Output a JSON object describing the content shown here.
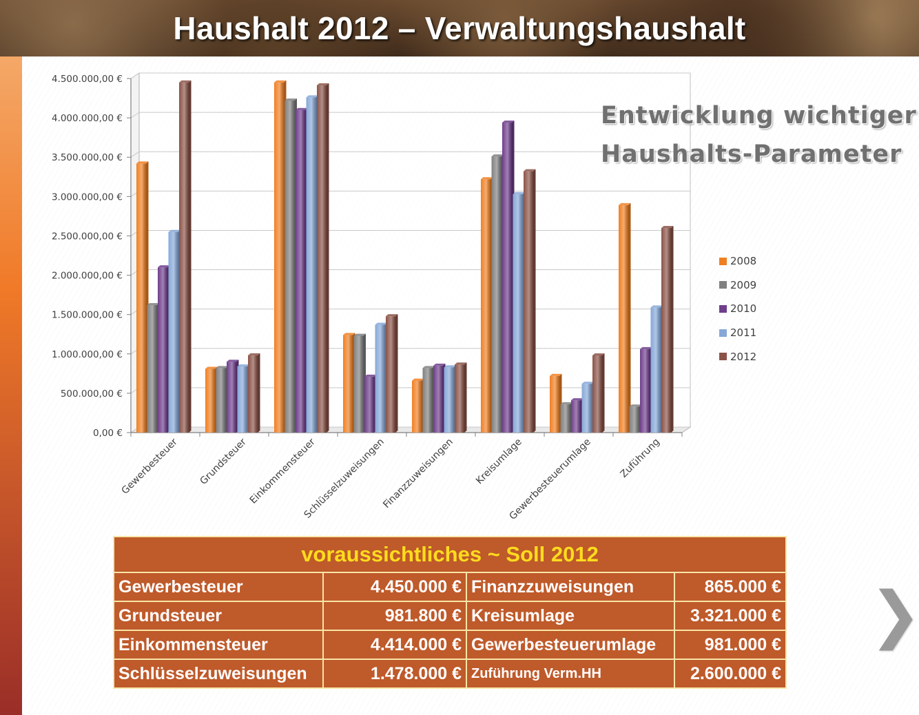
{
  "page_title": "Haushalt 2012 – Verwaltungshaushalt",
  "subtitle_line1": "Entwicklung wichtiger",
  "subtitle_line2": "Haushalts-Parameter",
  "chart_data": {
    "type": "bar",
    "title": "",
    "xlabel": "",
    "ylabel": "",
    "ylim": [
      0,
      4500000
    ],
    "y_ticks": [
      0,
      500000,
      1000000,
      1500000,
      2000000,
      2500000,
      3000000,
      3500000,
      4000000,
      4500000
    ],
    "y_tick_labels": [
      "0,00 €",
      "500.000,00 €",
      "1.000.000,00 €",
      "1.500.000,00 €",
      "2.000.000,00 €",
      "2.500.000,00 €",
      "3.000.000,00 €",
      "3.500.000,00 €",
      "4.000.000,00 €",
      "4.500.000,00 €"
    ],
    "grid": true,
    "legend_position": "right",
    "categories": [
      "Gewerbesteuer",
      "Grundsteuer",
      "Einkommensteuer",
      "Schlüsselzuweisungen",
      "Finanzzuweisungen",
      "Kreisumlage",
      "Gewerbesteuerumlage",
      "Zuführung"
    ],
    "series": [
      {
        "name": "2008",
        "color": "#f07f22",
        "values": [
          3420000,
          810000,
          4450000,
          1240000,
          660000,
          3220000,
          720000,
          2890000
        ]
      },
      {
        "name": "2009",
        "color": "#808080",
        "values": [
          1620000,
          820000,
          4220000,
          1230000,
          820000,
          3510000,
          360000,
          330000
        ]
      },
      {
        "name": "2010",
        "color": "#6f3e8c",
        "values": [
          2100000,
          900000,
          4100000,
          710000,
          850000,
          3940000,
          410000,
          1060000
        ]
      },
      {
        "name": "2011",
        "color": "#86a8d8",
        "values": [
          2550000,
          840000,
          4260000,
          1370000,
          830000,
          3030000,
          620000,
          1590000
        ]
      },
      {
        "name": "2012",
        "color": "#8b5347",
        "values": [
          4450000,
          981800,
          4414000,
          1478000,
          865000,
          3321000,
          981000,
          2600000
        ]
      }
    ]
  },
  "table": {
    "caption": "voraussichtliches   ~  Soll 2012",
    "rows": [
      {
        "l_label": "Gewerbesteuer",
        "l_value": "4.450.000 €",
        "r_label": "Finanzzuweisungen",
        "r_value": "865.000 €"
      },
      {
        "l_label": "Grundsteuer",
        "l_value": "981.800 €",
        "r_label": "Kreisumlage",
        "r_value": "3.321.000 €"
      },
      {
        "l_label": "Einkommensteuer",
        "l_value": "4.414.000 €",
        "r_label": "Gewerbesteuerumlage",
        "r_value": "981.000 €"
      },
      {
        "l_label": "Schlüsselzuweisungen",
        "l_value": "1.478.000 €",
        "r_label": "Zuführung Verm.HH",
        "r_value": "2.600.000 €"
      }
    ]
  },
  "nav": {
    "next_glyph": "❯"
  }
}
